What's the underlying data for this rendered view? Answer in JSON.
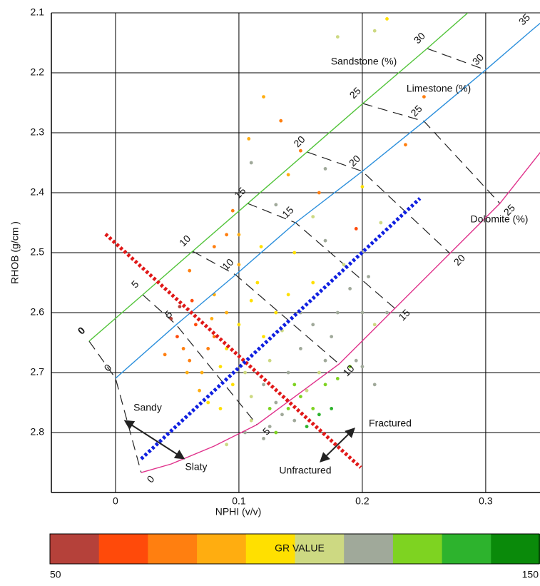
{
  "chart_data": {
    "type": "scatter",
    "x_label": "NPHI (v/v)",
    "y_label": "RHOB (g/cm  )",
    "xlim": [
      -0.052,
      0.344
    ],
    "ylim": [
      2.9,
      2.1
    ],
    "xticks": [
      0,
      0.1,
      0.2,
      0.3
    ],
    "yticks": [
      2.1,
      2.2,
      2.3,
      2.4,
      2.5,
      2.6,
      2.7,
      2.8
    ],
    "grid": true,
    "x": [
      0.045,
      0.05,
      0.055,
      0.06,
      0.065,
      0.07,
      0.075,
      0.058,
      0.08,
      0.052,
      0.068,
      0.085,
      0.04,
      0.062,
      0.078,
      0.09,
      0.1,
      0.11,
      0.095,
      0.12,
      0.105,
      0.13,
      0.115,
      0.085,
      0.125,
      0.14,
      0.1,
      0.135,
      0.075,
      0.09,
      0.145,
      0.16,
      0.11,
      0.118,
      0.08,
      0.12,
      0.13,
      0.14,
      0.15,
      0.16,
      0.17,
      0.18,
      0.19,
      0.155,
      0.145,
      0.125,
      0.11,
      0.165,
      0.175,
      0.2,
      0.185,
      0.17,
      0.16,
      0.135,
      0.105,
      0.195,
      0.205,
      0.21,
      0.15,
      0.14,
      0.15,
      0.16,
      0.17,
      0.155,
      0.18,
      0.165,
      0.13,
      0.145,
      0.175,
      0.19,
      0.125,
      0.12,
      0.134,
      0.15,
      0.18,
      0.22,
      0.21,
      0.25,
      0.235,
      0.108,
      0.11,
      0.14,
      0.165,
      0.095,
      0.09,
      0.1,
      0.2,
      0.215,
      0.195,
      0.06,
      0.08,
      0.13,
      0.17,
      0.2,
      0.22,
      0.2,
      0.21,
      0.12,
      0.09
    ],
    "values": [
      2.61,
      2.64,
      2.66,
      2.68,
      2.62,
      2.7,
      2.66,
      2.7,
      2.64,
      2.59,
      2.73,
      2.69,
      2.67,
      2.58,
      2.61,
      2.66,
      2.62,
      2.58,
      2.72,
      2.64,
      2.7,
      2.6,
      2.55,
      2.76,
      2.68,
      2.57,
      2.52,
      2.63,
      2.75,
      2.6,
      2.5,
      2.55,
      2.74,
      2.49,
      2.57,
      2.72,
      2.75,
      2.7,
      2.66,
      2.62,
      2.68,
      2.6,
      2.56,
      2.73,
      2.78,
      2.79,
      2.78,
      2.7,
      2.64,
      2.6,
      2.52,
      2.48,
      2.44,
      2.77,
      2.8,
      2.68,
      2.54,
      2.62,
      2.6,
      2.76,
      2.74,
      2.76,
      2.72,
      2.79,
      2.71,
      2.77,
      2.8,
      2.72,
      2.76,
      2.69,
      2.76,
      2.24,
      2.28,
      2.33,
      2.14,
      2.11,
      2.13,
      2.24,
      2.32,
      2.31,
      2.35,
      2.37,
      2.4,
      2.43,
      2.47,
      2.47,
      2.39,
      2.45,
      2.46,
      2.53,
      2.49,
      2.42,
      2.36,
      2.5,
      2.6,
      2.69,
      2.72,
      2.81,
      2.82
    ],
    "point_colors": [
      "#b5413a",
      "#ff4a0a",
      "#ff7f10",
      "#ff7f10",
      "#ff4a0a",
      "#ffad10",
      "#ff7f10",
      "#ffad10",
      "#ff7f10",
      "#b5413a",
      "#ffad10",
      "#ffe000",
      "#ff7f10",
      "#ff4a0a",
      "#ffad10",
      "#ffe000",
      "#ffe000",
      "#ffe000",
      "#ffe000",
      "#ffe000",
      "#cdd982",
      "#ffe000",
      "#ffe000",
      "#ffe000",
      "#cdd982",
      "#ffe000",
      "#ffad10",
      "#cdd982",
      "#ffe000",
      "#ffad10",
      "#ffe000",
      "#ffe000",
      "#cdd982",
      "#ffe000",
      "#ffad10",
      "#a0a99a",
      "#a0a99a",
      "#a0a99a",
      "#a0a99a",
      "#a0a99a",
      "#a0a99a",
      "#a0a99a",
      "#a0a99a",
      "#cdd982",
      "#a0a99a",
      "#a0a99a",
      "#cdd982",
      "#cdd982",
      "#a0a99a",
      "#a0a99a",
      "#cdd982",
      "#a0a99a",
      "#cdd982",
      "#a0a99a",
      "#a0a99a",
      "#a0a99a",
      "#a0a99a",
      "#cdd982",
      "#a0a99a",
      "#7ed321",
      "#7ed321",
      "#7ed321",
      "#7ed321",
      "#2db32d",
      "#7ed321",
      "#2db32d",
      "#7ed321",
      "#7ed321",
      "#2db32d",
      "#7ed321",
      "#7ed321",
      "#ffad10",
      "#ff7f10",
      "#ff7f10",
      "#cdd982",
      "#ffe000",
      "#cdd982",
      "#ff7f10",
      "#ff7f10",
      "#ffad10",
      "#a0a99a",
      "#ffad10",
      "#ff7f10",
      "#ff7f10",
      "#ff7f10",
      "#ffad10",
      "#ffe000",
      "#cdd982",
      "#ff4a0a",
      "#ff7f10",
      "#ff7f10",
      "#a0a99a",
      "#a0a99a",
      "#a0a99a",
      "#a0a99a",
      "#a0a99a",
      "#a0a99a",
      "#a0a99a",
      "#cdd982"
    ],
    "lines": [
      {
        "name": "Sandstone (%)",
        "color": "#52c43a",
        "x": [
          -0.0214,
          0.022,
          0.0625,
          0.1071,
          0.1552,
          0.2004,
          0.2525,
          0.2855
        ],
        "values": [
          2.6476,
          2.5702,
          2.4976,
          2.4179,
          2.3321,
          2.2512,
          2.1595,
          2.1
        ],
        "porosity_labels": [
          0,
          5,
          10,
          15,
          20,
          25,
          30,
          null
        ]
      },
      {
        "name": "Limestone (%)",
        "color": "#2b8fdc",
        "x": [
          0,
          0.0492,
          0.0973,
          0.1459,
          0.2,
          0.2501,
          0.3,
          0.3376,
          0.3445
        ],
        "values": [
          2.7095,
          2.6202,
          2.5369,
          2.45,
          2.3643,
          2.281,
          2.1952,
          2.1286,
          2.1167
        ],
        "porosity_labels": [
          0,
          5,
          10,
          15,
          20,
          25,
          30,
          35,
          null
        ]
      },
      {
        "name": "Dolomite (%)",
        "color": "#e0338c",
        "x": [
          0.0208,
          0.0452,
          0.0799,
          0.1146,
          0.1812,
          0.2264,
          0.271,
          0.3115,
          0.3445
        ],
        "values": [
          2.8667,
          2.8524,
          2.8226,
          2.7869,
          2.6857,
          2.5929,
          2.5012,
          2.4179,
          2.3321
        ],
        "porosity_labels": [
          0,
          null,
          null,
          5,
          10,
          15,
          20,
          25,
          null
        ]
      }
    ],
    "guides": [
      {
        "color": "#e01818",
        "x": [
          -0.0081,
          0.1987
        ],
        "values": [
          2.469,
          2.8583
        ]
      },
      {
        "color": "#1020e0",
        "x": [
          0.0208,
          0.2467
        ],
        "values": [
          2.844,
          2.4095
        ]
      }
    ],
    "annotations": [
      "Sandy",
      "Slaty",
      "Fractured",
      "Unfractured"
    ],
    "colorbar": {
      "label": "GR VALUE",
      "colors": [
        "#b5413a",
        "#ff4a0a",
        "#ff7f10",
        "#ffad10",
        "#ffe000",
        "#cdd982",
        "#a0a99a",
        "#7ed321",
        "#2db32d",
        "#0a8a0a"
      ],
      "range": [
        50,
        150
      ]
    }
  }
}
